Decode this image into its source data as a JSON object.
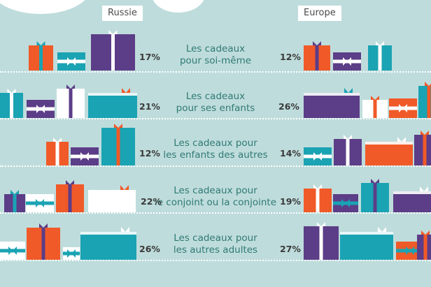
{
  "chart_data": {
    "type": "table",
    "columns": [
      "Russie",
      "Europe"
    ],
    "rows": [
      {
        "label_lines": [
          "Les cadeaux",
          "pour soi-même"
        ],
        "russie": "17%",
        "europe": "12%"
      },
      {
        "label_lines": [
          "Les cadeaux",
          "pour ses enfants"
        ],
        "russie": "21%",
        "europe": "26%"
      },
      {
        "label_lines": [
          "Les cadeaux pour",
          "les enfants des autres"
        ],
        "russie": "12%",
        "europe": "14%"
      },
      {
        "label_lines": [
          "Les cadeaux pour",
          "le conjoint ou la conjointe"
        ],
        "russie": "22%",
        "europe": "19%"
      },
      {
        "label_lines": [
          "Les cadeaux pour",
          "les autres adultes"
        ],
        "russie": "26%",
        "europe": "27%"
      }
    ],
    "values_russie": [
      17,
      21,
      12,
      22,
      26
    ],
    "values_europe": [
      12,
      26,
      14,
      19,
      27
    ]
  },
  "colors": {
    "background": "#bfdcdc",
    "orange": "#f05a28",
    "purple": "#5c3d87",
    "teal": "#1aa3b3",
    "white": "#ffffff",
    "text_teal": "#2e7a74"
  }
}
